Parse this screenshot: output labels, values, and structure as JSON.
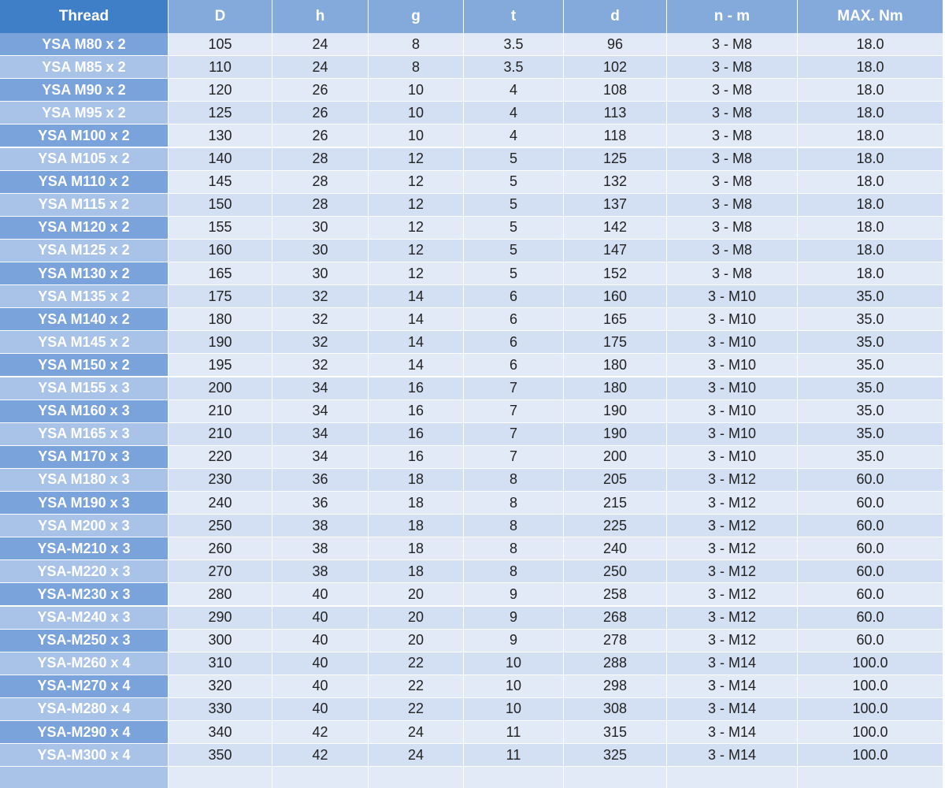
{
  "table": {
    "header": [
      "Thread",
      "D",
      "h",
      "g",
      "t",
      "d",
      "n - m",
      "MAX. Nm"
    ],
    "rows": [
      [
        "YSA M80 x 2",
        "105",
        "24",
        "8",
        "3.5",
        "96",
        "3 - M8",
        "18.0"
      ],
      [
        "YSA M85 x 2",
        "110",
        "24",
        "8",
        "3.5",
        "102",
        "3 - M8",
        "18.0"
      ],
      [
        "YSA M90 x 2",
        "120",
        "26",
        "10",
        "4",
        "108",
        "3 - M8",
        "18.0"
      ],
      [
        "YSA M95 x 2",
        "125",
        "26",
        "10",
        "4",
        "113",
        "3 - M8",
        "18.0"
      ],
      [
        "YSA M100 x 2",
        "130",
        "26",
        "10",
        "4",
        "118",
        "3 - M8",
        "18.0"
      ],
      [
        "YSA M105 x 2",
        "140",
        "28",
        "12",
        "5",
        "125",
        "3 - M8",
        "18.0"
      ],
      [
        "YSA M110 x 2",
        "145",
        "28",
        "12",
        "5",
        "132",
        "3 - M8",
        "18.0"
      ],
      [
        "YSA M115 x 2",
        "150",
        "28",
        "12",
        "5",
        "137",
        "3 - M8",
        "18.0"
      ],
      [
        "YSA M120 x 2",
        "155",
        "30",
        "12",
        "5",
        "142",
        "3 - M8",
        "18.0"
      ],
      [
        "YSA M125 x 2",
        "160",
        "30",
        "12",
        "5",
        "147",
        "3 - M8",
        "18.0"
      ],
      [
        "YSA M130 x 2",
        "165",
        "30",
        "12",
        "5",
        "152",
        "3 - M8",
        "18.0"
      ],
      [
        "YSA M135 x 2",
        "175",
        "32",
        "14",
        "6",
        "160",
        "3 - M10",
        "35.0"
      ],
      [
        "YSA M140 x 2",
        "180",
        "32",
        "14",
        "6",
        "165",
        "3 - M10",
        "35.0"
      ],
      [
        "YSA M145 x 2",
        "190",
        "32",
        "14",
        "6",
        "175",
        "3 - M10",
        "35.0"
      ],
      [
        "YSA M150 x 2",
        "195",
        "32",
        "14",
        "6",
        "180",
        "3 - M10",
        "35.0"
      ],
      [
        "YSA M155 x 3",
        "200",
        "34",
        "16",
        "7",
        "180",
        "3 - M10",
        "35.0"
      ],
      [
        "YSA M160 x 3",
        "210",
        "34",
        "16",
        "7",
        "190",
        "3 - M10",
        "35.0"
      ],
      [
        "YSA M165 x 3",
        "210",
        "34",
        "16",
        "7",
        "190",
        "3 - M10",
        "35.0"
      ],
      [
        "YSA M170 x 3",
        "220",
        "34",
        "16",
        "7",
        "200",
        "3 - M10",
        "35.0"
      ],
      [
        "YSA M180 x 3",
        "230",
        "36",
        "18",
        "8",
        "205",
        "3 - M12",
        "60.0"
      ],
      [
        "YSA M190 x 3",
        "240",
        "36",
        "18",
        "8",
        "215",
        "3 - M12",
        "60.0"
      ],
      [
        "YSA M200 x 3",
        "250",
        "38",
        "18",
        "8",
        "225",
        "3 - M12",
        "60.0"
      ],
      [
        "YSA-M210 x 3",
        "260",
        "38",
        "18",
        "8",
        "240",
        "3 - M12",
        "60.0"
      ],
      [
        "YSA-M220 x 3",
        "270",
        "38",
        "18",
        "8",
        "250",
        "3 - M12",
        "60.0"
      ],
      [
        "YSA-M230 x 3",
        "280",
        "40",
        "20",
        "9",
        "258",
        "3 - M12",
        "60.0"
      ],
      [
        "YSA-M240 x 3",
        "290",
        "40",
        "20",
        "9",
        "268",
        "3 - M12",
        "60.0"
      ],
      [
        "YSA-M250 x 3",
        "300",
        "40",
        "20",
        "9",
        "278",
        "3 - M12",
        "60.0"
      ],
      [
        "YSA-M260 x 4",
        "310",
        "40",
        "22",
        "10",
        "288",
        "3 - M14",
        "100.0"
      ],
      [
        "YSA-M270 x 4",
        "320",
        "40",
        "22",
        "10",
        "298",
        "3 - M14",
        "100.0"
      ],
      [
        "YSA-M280 x 4",
        "330",
        "40",
        "22",
        "10",
        "308",
        "3 - M14",
        "100.0"
      ],
      [
        "YSA-M290 x 4",
        "340",
        "42",
        "24",
        "11",
        "315",
        "3 - M14",
        "100.0"
      ],
      [
        "YSA-M300 x 4",
        "350",
        "42",
        "24",
        "11",
        "325",
        "3 - M14",
        "100.0"
      ]
    ]
  }
}
